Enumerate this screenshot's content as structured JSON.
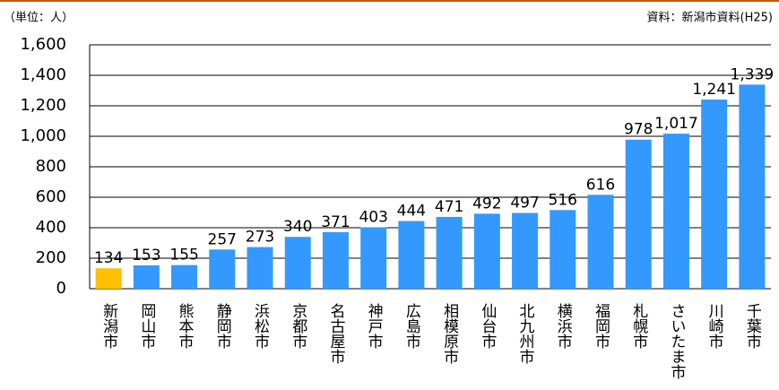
{
  "chart_data": {
    "type": "bar",
    "unit_label": "（単位：人）",
    "source": "資料：新潟市資料(H25)",
    "categories": [
      "新潟市",
      "岡山市",
      "熊本市",
      "静岡市",
      "浜松市",
      "京都市",
      "名古屋市",
      "神戸市",
      "広島市",
      "相模原市",
      "仙台市",
      "北九州市",
      "横浜市",
      "福岡市",
      "札幌市",
      "さいたま市",
      "川崎市",
      "千葉市"
    ],
    "values": [
      134,
      153,
      155,
      257,
      273,
      340,
      371,
      403,
      444,
      471,
      492,
      497,
      516,
      616,
      978,
      1017,
      1241,
      1339
    ],
    "value_labels": [
      "134",
      "153",
      "155",
      "257",
      "273",
      "340",
      "371",
      "403",
      "444",
      "471",
      "492",
      "497",
      "516",
      "616",
      "978",
      "1,017",
      "1,241",
      "1,339"
    ],
    "colors": [
      "#ffc000",
      "#3399ff",
      "#3399ff",
      "#3399ff",
      "#3399ff",
      "#3399ff",
      "#3399ff",
      "#3399ff",
      "#3399ff",
      "#3399ff",
      "#3399ff",
      "#3399ff",
      "#3399ff",
      "#3399ff",
      "#3399ff",
      "#3399ff",
      "#3399ff",
      "#3399ff"
    ],
    "ylim": [
      0,
      1600
    ],
    "yticks": [
      0,
      200,
      400,
      600,
      800,
      {
        "value": 1000,
        "label": "1,000"
      },
      {
        "value": 1200,
        "label": "1,200"
      },
      {
        "value": 1400,
        "label": "1,400"
      },
      {
        "value": 1600,
        "label": "1,600"
      }
    ],
    "grid": true
  }
}
